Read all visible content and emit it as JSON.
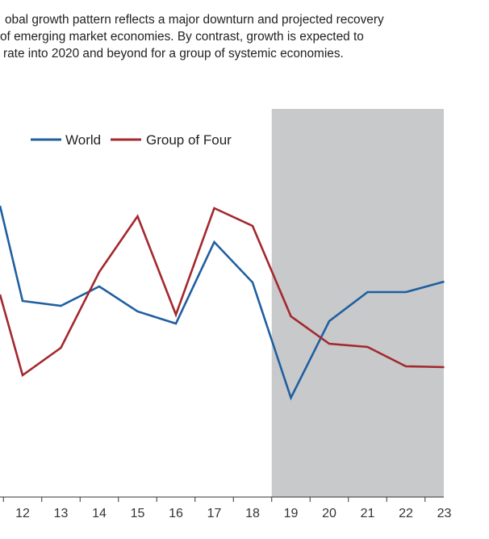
{
  "caption": {
    "lines": [
      "obal growth pattern reflects a major downturn and projected recovery",
      "of emerging market economies. By contrast, growth is expected to",
      "rate into 2020 and beyond for a group of systemic economies."
    ]
  },
  "chart_data": {
    "type": "line",
    "title": "",
    "xlabel": "",
    "ylabel": "",
    "x": [
      "12",
      "13",
      "14",
      "15",
      "16",
      "17",
      "18",
      "19",
      "20",
      "21",
      "22",
      "23"
    ],
    "x_tick_labels": [
      "12",
      "13",
      "14",
      "15",
      "16",
      "17",
      "18",
      "19",
      "20",
      "21",
      "22",
      "23"
    ],
    "projection_shading_start": "19",
    "grid": false,
    "legend_position": "top-left",
    "series": [
      {
        "name": "World",
        "color": "#1f5fa0",
        "values": [
          373,
          379,
          355,
          386,
          401,
          300,
          350,
          493,
          398,
          362,
          362,
          349
        ],
        "partial_start_value": 255
      },
      {
        "name": "Group of Four",
        "color": "#a3282e",
        "values": [
          465,
          431,
          337,
          268,
          390,
          258,
          280,
          392,
          426,
          430,
          454,
          455
        ],
        "partial_start_value": 365
      }
    ],
    "y_axis_inverted_units": "relative",
    "colors": {
      "shading": "#c8c9cb",
      "axis": "#333333"
    }
  }
}
